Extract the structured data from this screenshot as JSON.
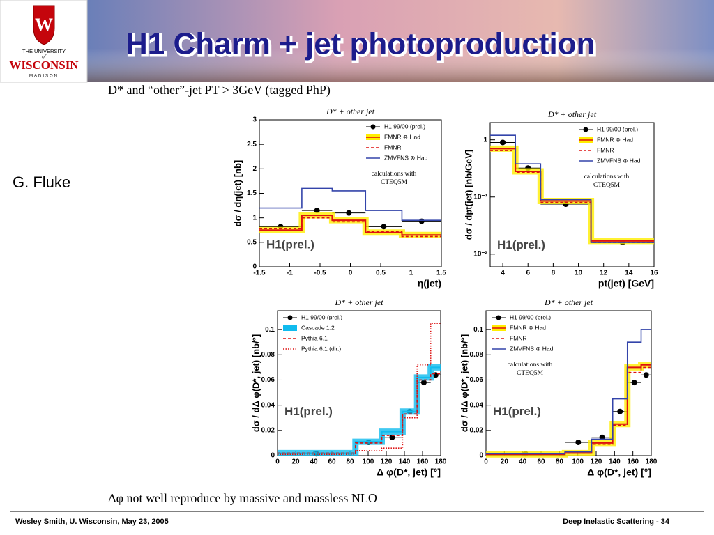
{
  "header": {
    "title": "H1 Charm + jet photoproduction",
    "logo": {
      "line1": "THE UNIVERSITY",
      "line2": "of",
      "line3": "WISCONSIN",
      "line4": "MADISON"
    }
  },
  "subtitle": "D* and “other”-jet PT > 3GeV (tagged PhP)",
  "author": "G. Fluke",
  "chart_data": [
    {
      "type": "histogram",
      "title": "D* + other jet",
      "xlabel": "η(jet)",
      "ylabel": "dσ / dη(jet) [nb]",
      "bins": [
        -1.5,
        -0.8,
        -0.3,
        0.25,
        0.85,
        1.5
      ],
      "xlim": [
        -1.5,
        1.5
      ],
      "xticks": [
        -1.5,
        -1,
        -0.5,
        0,
        0.5,
        1,
        1.5
      ],
      "ylim": [
        0,
        3
      ],
      "yticks": [
        0,
        0.5,
        1,
        1.5,
        2,
        2.5,
        3
      ],
      "legend": "upper right",
      "annotation": "H1(prel.)",
      "note": [
        "calculations with",
        "CTEQ5M"
      ],
      "series": [
        {
          "name": "H1 99/00 (prel.)",
          "color": "#000000",
          "style": "points",
          "values": [
            0.82,
            1.15,
            1.1,
            0.82,
            0.93
          ]
        },
        {
          "name": "FMNR ⊗ Had",
          "color": "#dd1111",
          "style": "band",
          "values": [
            0.75,
            1.05,
            0.95,
            0.7,
            0.65
          ]
        },
        {
          "name": "FMNR",
          "color": "#dd1111",
          "style": "dashed",
          "values": [
            0.78,
            1.0,
            0.92,
            0.72,
            0.62
          ]
        },
        {
          "name": "ZMVFNS ⊗ Had",
          "color": "#3344aa",
          "style": "solid",
          "values": [
            1.2,
            1.6,
            1.55,
            1.15,
            0.95
          ]
        }
      ]
    },
    {
      "type": "histogram",
      "title": "D* + other jet",
      "xlabel": "pt(jet) [GeV]",
      "ylabel": "dσ / dpt(jet)  [nb/GeV]",
      "bins": [
        3,
        5,
        7,
        11,
        16
      ],
      "xlim": [
        3,
        16
      ],
      "xticks": [
        4,
        6,
        8,
        10,
        12,
        14,
        16
      ],
      "log_y": true,
      "ylim": [
        0.006,
        2
      ],
      "yticks": [
        1,
        {
          "value": 0.1,
          "label": "10⁻¹"
        },
        {
          "value": 0.01,
          "label": "10⁻²"
        }
      ],
      "legend": "upper right",
      "annotation": "H1(prel.)",
      "note": [
        "calculations with",
        "CTEQ5M"
      ],
      "series": [
        {
          "name": "H1 99/00 (prel.)",
          "color": "#000000",
          "style": "points",
          "values": [
            0.9,
            0.32,
            0.075,
            0.016
          ]
        },
        {
          "name": "FMNR ⊗ Had",
          "color": "#dd1111",
          "style": "band",
          "values": [
            0.7,
            0.28,
            0.085,
            0.017
          ]
        },
        {
          "name": "FMNR",
          "color": "#dd1111",
          "style": "dashed",
          "values": [
            0.65,
            0.27,
            0.08,
            0.016
          ]
        },
        {
          "name": "ZMVFNS ⊗ Had",
          "color": "#3344aa",
          "style": "solid",
          "values": [
            1.2,
            0.38,
            0.09,
            0.016
          ]
        }
      ]
    },
    {
      "type": "histogram",
      "title": "D* + other jet",
      "xlabel": "Δ φ(D*, jet) [°]",
      "ylabel": "dσ / dΔ φ(D*, jet)  [nb/°]",
      "bins": [
        0,
        86,
        115,
        138,
        154,
        169,
        180
      ],
      "xlim": [
        0,
        180
      ],
      "xticks": [
        0,
        20,
        40,
        60,
        80,
        100,
        120,
        140,
        160,
        180
      ],
      "ylim": [
        0,
        0.115
      ],
      "yticks": [
        0,
        0.02,
        0.04,
        0.06,
        0.08,
        0.1
      ],
      "legend": "upper left",
      "annotation": "H1(prel.)",
      "series": [
        {
          "name": "H1 99/00 (prel.)",
          "color": "#000000",
          "style": "points",
          "values": [
            0.0015,
            0.0105,
            0.0145,
            0.035,
            0.058,
            0.064
          ]
        },
        {
          "name": "Cascade 1.2",
          "color": "#11bbee",
          "style": "band",
          "values": [
            0.002,
            0.011,
            0.019,
            0.035,
            0.062,
            0.07
          ]
        },
        {
          "name": "Pythia 6.1",
          "color": "#dd1111",
          "style": "dashed",
          "values": [
            0.002,
            0.01,
            0.016,
            0.033,
            0.06,
            0.065
          ]
        },
        {
          "name": "Pythia 6.1 (dir.)",
          "color": "#dd1111",
          "style": "dotted",
          "values": [
            0.001,
            0.004,
            0.006,
            0.03,
            0.072,
            0.105
          ]
        }
      ]
    },
    {
      "type": "histogram",
      "title": "D* + other jet",
      "xlabel": "Δ φ(D*, jet) [°]",
      "ylabel": "dσ / dΔ φ(D*, jet)  [nb/°]",
      "bins": [
        0,
        86,
        115,
        138,
        154,
        169,
        180
      ],
      "xlim": [
        0,
        180
      ],
      "xticks": [
        0,
        20,
        40,
        60,
        80,
        100,
        120,
        140,
        160,
        180
      ],
      "ylim": [
        0,
        0.115
      ],
      "yticks": [
        0,
        0.02,
        0.04,
        0.06,
        0.08,
        0.1
      ],
      "legend": "upper left",
      "annotation": "H1(prel.)",
      "note": [
        "calculations with",
        "CTEQ5M"
      ],
      "series": [
        {
          "name": "H1 99/00 (prel.)",
          "color": "#000000",
          "style": "points",
          "values": [
            0.0015,
            0.0105,
            0.0145,
            0.035,
            0.058,
            0.064
          ]
        },
        {
          "name": "FMNR ⊗ Had",
          "color": "#dd1111",
          "style": "band",
          "values": [
            0.001,
            0.002,
            0.01,
            0.025,
            0.07,
            0.072
          ]
        },
        {
          "name": "FMNR",
          "color": "#dd1111",
          "style": "dashed",
          "values": [
            0.001,
            0.002,
            0.009,
            0.024,
            0.066,
            0.07
          ]
        },
        {
          "name": "ZMVFNS ⊗ Had",
          "color": "#3344aa",
          "style": "solid",
          "values": [
            0.0015,
            0.003,
            0.013,
            0.045,
            0.09,
            0.1
          ]
        }
      ]
    }
  ],
  "caption": "Δφ not well reproduce by massive and massless NLO",
  "footer": {
    "left": "Wesley Smith, U. Wisconsin, May 23, 2005",
    "right": "Deep Inelastic Scattering  -  34"
  }
}
